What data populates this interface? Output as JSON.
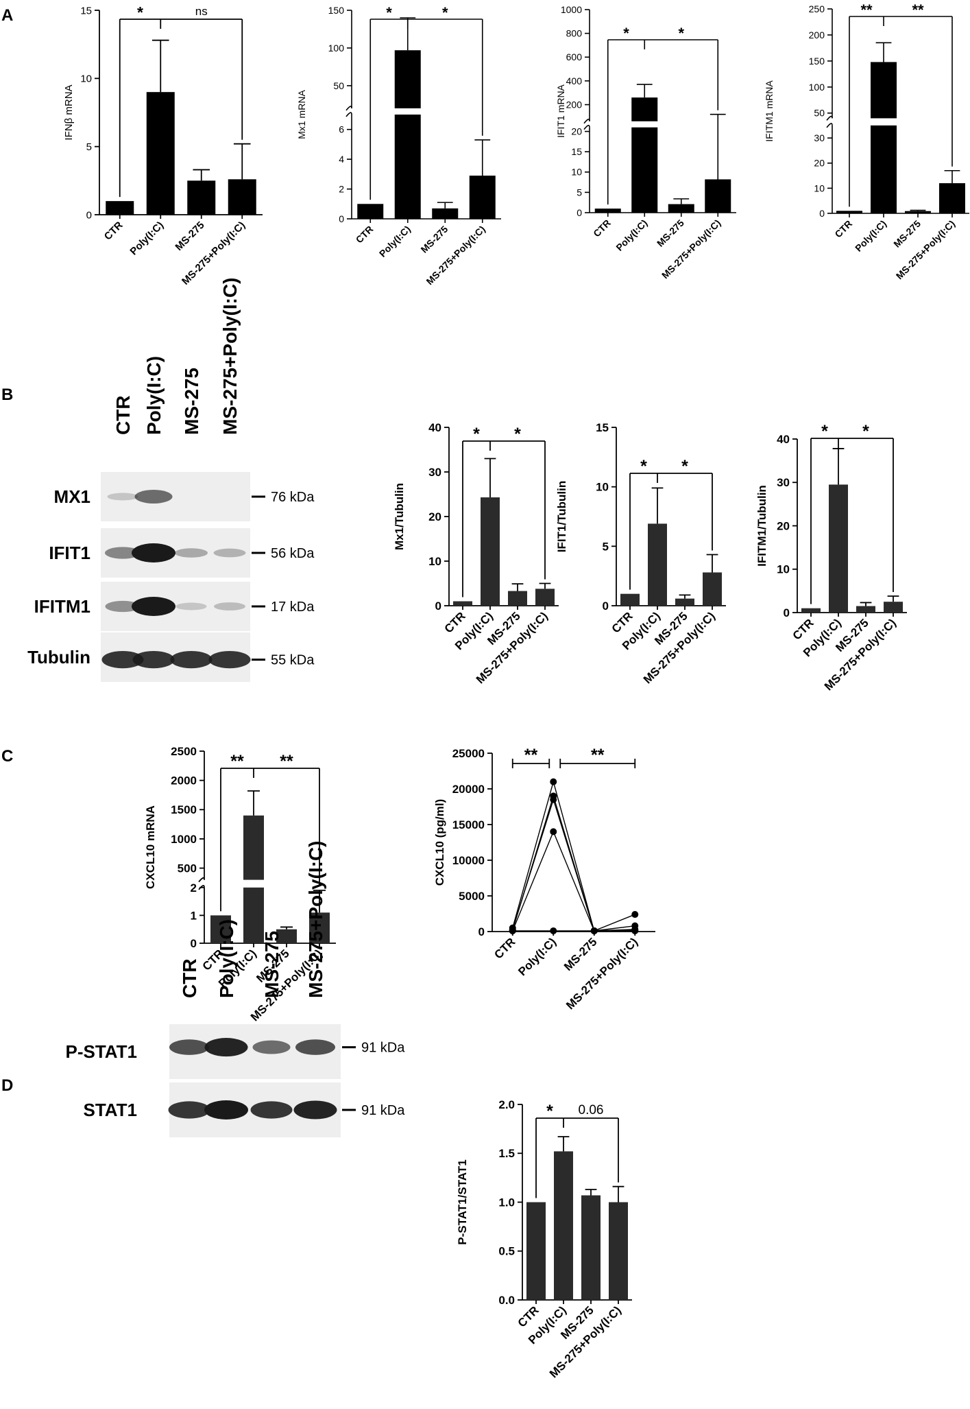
{
  "panels": {
    "A": "A",
    "B": "B",
    "C": "C",
    "D": "D"
  },
  "colors": {
    "bar_A": "#000000",
    "bar_B": "#2b2b2b",
    "membrane": "#eeeeee",
    "band": "#1a1a1a"
  },
  "groups": [
    "CTR",
    "Poly(I:C)",
    "MS-275",
    "MS-275+Poly(I:C)"
  ],
  "blot_B": {
    "lanes": [
      "CTR",
      "Poly(I:C)",
      "MS-275",
      "MS-275+Poly(I:C)"
    ],
    "rows": [
      {
        "label": "MX1",
        "kda": "76 kDa",
        "intensity": [
          0.05,
          0.55,
          0.0,
          0.0
        ]
      },
      {
        "label": "IFIT1",
        "kda": "56 kDa",
        "intensity": [
          0.4,
          1.0,
          0.2,
          0.15
        ]
      },
      {
        "label": "IFITM1",
        "kda": "17 kDa",
        "intensity": [
          0.35,
          1.0,
          0.05,
          0.1
        ]
      },
      {
        "label": "Tubulin",
        "kda": "55 kDa",
        "intensity": [
          0.85,
          0.85,
          0.85,
          0.85
        ]
      }
    ]
  },
  "blot_D": {
    "lanes": [
      "CTR",
      "Poly(I:C)",
      "MS-275",
      "MS-275+Poly(I:C)"
    ],
    "rows": [
      {
        "label": "P-STAT1",
        "kda": "91 kDa",
        "intensity": [
          0.7,
          0.95,
          0.55,
          0.7
        ]
      },
      {
        "label": "STAT1",
        "kda": "91 kDa",
        "intensity": [
          0.85,
          1.0,
          0.85,
          0.95
        ]
      }
    ]
  },
  "chart_data": [
    {
      "id": "A1",
      "type": "bar",
      "panel": "A",
      "ylabel": "IFNβ mRNA",
      "categories": [
        "CTR",
        "Poly(I:C)",
        "MS-275",
        "MS-275+Poly(I:C)"
      ],
      "values": [
        1,
        9,
        2.5,
        2.6
      ],
      "errors": [
        0,
        3.8,
        0.8,
        2.6
      ],
      "ylim": [
        0,
        15
      ],
      "yticks": [
        "0",
        "5",
        "10",
        "15"
      ],
      "sig": [
        {
          "label": "*",
          "from": 0,
          "to": 1
        },
        {
          "label": "ns",
          "from": 1,
          "to": 3
        }
      ]
    },
    {
      "id": "A2",
      "type": "bar",
      "panel": "A",
      "ylabel": "Mx1 mRNA",
      "categories": [
        "CTR",
        "Poly(I:C)",
        "MS-275",
        "MS-275+Poly(I:C)"
      ],
      "values": [
        1,
        97,
        0.7,
        2.9
      ],
      "errors": [
        0,
        43,
        0.4,
        2.4
      ],
      "axis_break": {
        "lower": [
          0,
          7
        ],
        "upper": [
          20,
          150
        ]
      },
      "yticks_lower": [
        "0",
        "2",
        "4",
        "6"
      ],
      "yticks_upper": [
        "50",
        "100",
        "150"
      ],
      "sig": [
        {
          "label": "*",
          "from": 0,
          "to": 1
        },
        {
          "label": "*",
          "from": 1,
          "to": 3
        }
      ]
    },
    {
      "id": "A3",
      "type": "bar",
      "panel": "A",
      "ylabel": "IFIT1 mRNA",
      "categories": [
        "CTR",
        "Poly(I:C)",
        "MS-275",
        "MS-275+Poly(I:C)"
      ],
      "values": [
        1,
        260,
        2.1,
        8.2
      ],
      "errors": [
        0,
        110,
        1.3,
        110
      ],
      "axis_break": {
        "lower": [
          0,
          21
        ],
        "upper": [
          60,
          1000
        ]
      },
      "yticks_lower": [
        "0",
        "5",
        "10",
        "15",
        "20"
      ],
      "yticks_upper": [
        "200",
        "400",
        "600",
        "800",
        "1000"
      ],
      "sig": [
        {
          "label": "*",
          "from": 0,
          "to": 1
        },
        {
          "label": "*",
          "from": 1,
          "to": 3
        }
      ]
    },
    {
      "id": "A4",
      "type": "bar",
      "panel": "A",
      "ylabel": "IFITM1 mRNA",
      "categories": [
        "CTR",
        "Poly(I:C)",
        "MS-275",
        "MS-275+Poly(I:C)"
      ],
      "values": [
        1,
        148,
        0.9,
        12
      ],
      "errors": [
        0,
        37,
        0.3,
        5
      ],
      "axis_break": {
        "lower": [
          0,
          35
        ],
        "upper": [
          40,
          250
        ]
      },
      "yticks_lower": [
        "0",
        "10",
        "20",
        "30"
      ],
      "yticks_upper": [
        "50",
        "100",
        "150",
        "200",
        "250"
      ],
      "sig": [
        {
          "label": "**",
          "from": 0,
          "to": 1
        },
        {
          "label": "**",
          "from": 1,
          "to": 3
        }
      ]
    },
    {
      "id": "B1",
      "type": "bar",
      "panel": "B",
      "ylabel": "Mx1/Tubulin",
      "categories": [
        "CTR",
        "Poly(I:C)",
        "MS-275",
        "MS-275+Poly(I:C)"
      ],
      "values": [
        1,
        24.3,
        3.3,
        3.8
      ],
      "errors": [
        0,
        8.7,
        1.6,
        1.2
      ],
      "ylim": [
        0,
        40
      ],
      "yticks": [
        "0",
        "10",
        "20",
        "30",
        "40"
      ],
      "sig": [
        {
          "label": "*",
          "from": 0,
          "to": 1
        },
        {
          "label": "*",
          "from": 1,
          "to": 3
        }
      ]
    },
    {
      "id": "B2",
      "type": "bar",
      "panel": "B",
      "ylabel": "IFIT1/Tubulin",
      "categories": [
        "CTR",
        "Poly(I:C)",
        "MS-275",
        "MS-275+Poly(I:C)"
      ],
      "values": [
        1,
        6.9,
        0.6,
        2.8
      ],
      "errors": [
        0,
        3.0,
        0.3,
        1.5
      ],
      "ylim": [
        0,
        15
      ],
      "yticks": [
        "0",
        "5",
        "10",
        "15"
      ],
      "sig": [
        {
          "label": "*",
          "from": 0,
          "to": 1
        },
        {
          "label": "*",
          "from": 1,
          "to": 3
        }
      ]
    },
    {
      "id": "B3",
      "type": "bar",
      "panel": "B",
      "ylabel": "IFITM1/Tubulin",
      "categories": [
        "CTR",
        "Poly(I:C)",
        "MS-275",
        "MS-275+Poly(I:C)"
      ],
      "values": [
        1,
        29.5,
        1.5,
        2.5
      ],
      "errors": [
        0,
        8.3,
        0.8,
        1.3
      ],
      "ylim": [
        0,
        40
      ],
      "yticks": [
        "0",
        "10",
        "20",
        "30",
        "40"
      ],
      "sig": [
        {
          "label": "*",
          "from": 0,
          "to": 1
        },
        {
          "label": "*",
          "from": 1,
          "to": 3
        }
      ]
    },
    {
      "id": "C1",
      "type": "bar",
      "panel": "C",
      "ylabel": "CXCL10 mRNA",
      "categories": [
        "CTR",
        "Poly(I:C)",
        "MS-275",
        "MS-275+Poly(I:C)"
      ],
      "values": [
        1,
        1400,
        0.5,
        1.1
      ],
      "errors": [
        0,
        420,
        0.08,
        0.8
      ],
      "axis_break": {
        "lower": [
          0,
          2
        ],
        "upper": [
          300,
          2500
        ]
      },
      "yticks_lower": [
        "0",
        "1",
        "2"
      ],
      "yticks_upper": [
        "500",
        "1000",
        "1500",
        "2000",
        "2500"
      ],
      "sig": [
        {
          "label": "**",
          "from": 0,
          "to": 1
        },
        {
          "label": "**",
          "from": 1,
          "to": 3
        }
      ]
    },
    {
      "id": "C2",
      "type": "line",
      "panel": "C",
      "ylabel": "CXCL10 (pg/ml)",
      "categories": [
        "CTR",
        "Poly(I:C)",
        "MS-275",
        "MS-275+Poly(I:C)"
      ],
      "series": [
        {
          "values": [
            500,
            21000,
            100,
            2400
          ]
        },
        {
          "values": [
            200,
            19000,
            100,
            800
          ]
        },
        {
          "values": [
            300,
            18500,
            100,
            300
          ]
        },
        {
          "values": [
            100,
            14000,
            100,
            200
          ]
        },
        {
          "values": [
            100,
            100,
            100,
            100
          ]
        }
      ],
      "ylim": [
        0,
        25000
      ],
      "yticks": [
        "0",
        "5000",
        "10000",
        "15000",
        "20000",
        "25000"
      ],
      "sig": [
        {
          "label": "**",
          "from": 0,
          "to": 1,
          "style": "span"
        },
        {
          "label": "**",
          "from": 1,
          "to": 3,
          "style": "span"
        }
      ]
    },
    {
      "id": "D1",
      "type": "bar",
      "panel": "D",
      "ylabel": "P-STAT1/STAT1",
      "categories": [
        "CTR",
        "Poly(I:C)",
        "MS-275",
        "MS-275+Poly(I:C)"
      ],
      "values": [
        1.0,
        1.52,
        1.07,
        1.0
      ],
      "errors": [
        0,
        0.15,
        0.06,
        0.16
      ],
      "ylim": [
        0,
        2.0
      ],
      "yticks": [
        "0.0",
        "0.5",
        "1.0",
        "1.5",
        "2.0"
      ],
      "sig": [
        {
          "label": "*",
          "from": 0,
          "to": 1
        },
        {
          "label": "0.06",
          "from": 1,
          "to": 3
        }
      ]
    }
  ]
}
